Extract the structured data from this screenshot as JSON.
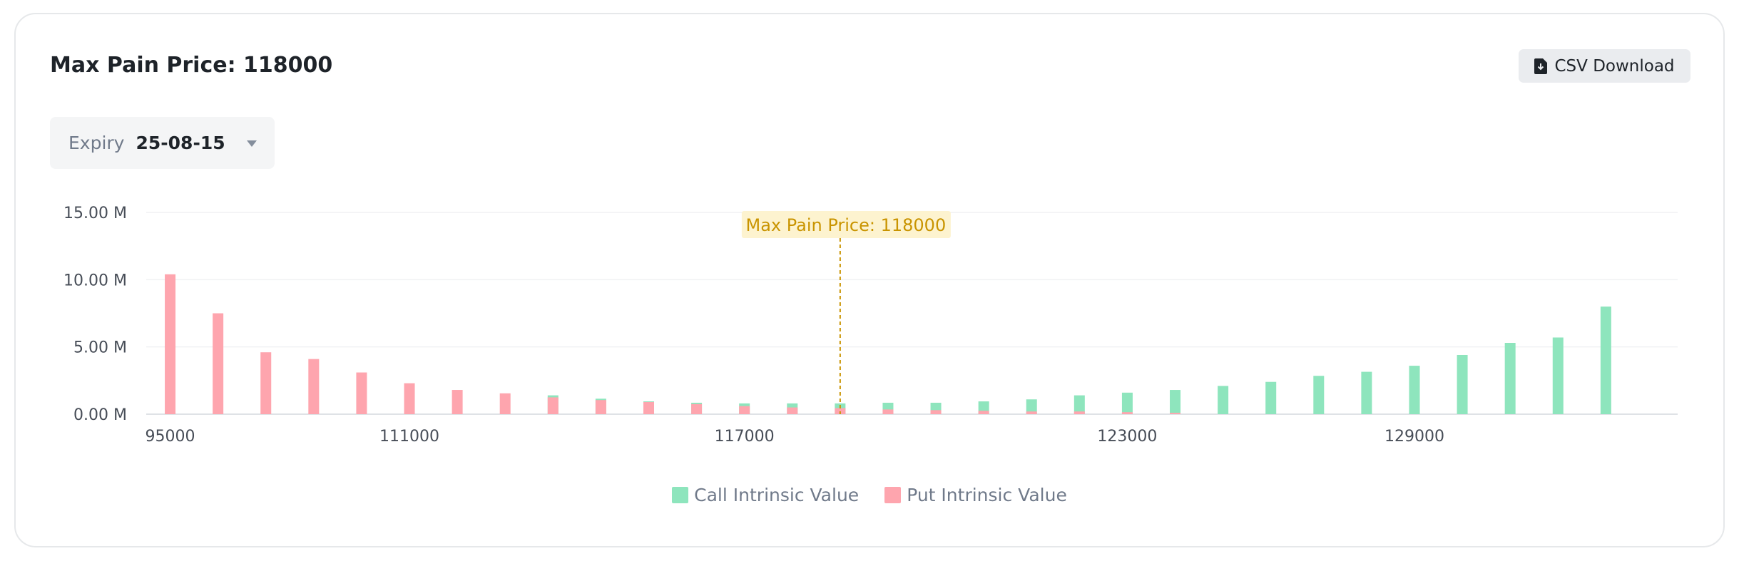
{
  "header": {
    "title": "Max Pain Price: 118000",
    "csv_button_label": "CSV Download",
    "csv_icon": "file-download-icon"
  },
  "expiry": {
    "label": "Expiry",
    "value": "25-08-15",
    "dropdown_icon": "caret-down-icon"
  },
  "chart_data": {
    "type": "bar",
    "max_pain_annotation": "Max Pain Price: 118000",
    "max_pain_strike": 118000,
    "y_ticks": [
      "0.00 M",
      "5.00 M",
      "10.00 M",
      "15.00 M"
    ],
    "y_tick_values": [
      0,
      5,
      10,
      15
    ],
    "ylim": [
      0,
      15
    ],
    "x_tick_labels": [
      "95000",
      "111000",
      "117000",
      "123000",
      "129000"
    ],
    "categories": [
      95000,
      105000,
      107000,
      109000,
      110000,
      111000,
      112000,
      113000,
      114000,
      115000,
      116000,
      116500,
      117000,
      117500,
      118000,
      118500,
      119000,
      120000,
      121000,
      122000,
      123000,
      124000,
      125000,
      126000,
      127000,
      128000,
      129000,
      130000,
      131000,
      132000,
      133000,
      135000
    ],
    "series": [
      {
        "name": "Call Intrinsic Value",
        "color": "#8ee5bd",
        "values": [
          0,
          0,
          0,
          0,
          0,
          0,
          0,
          0,
          1.4,
          1.15,
          0.95,
          0.85,
          0.8,
          0.8,
          0.8,
          0.85,
          0.85,
          0.95,
          1.1,
          1.4,
          1.6,
          1.8,
          2.1,
          2.4,
          2.85,
          3.15,
          3.6,
          4.4,
          5.3,
          5.7,
          8.0,
          0
        ]
      },
      {
        "name": "Put Intrinsic Value",
        "color": "#fea5ae",
        "values": [
          10.4,
          7.5,
          4.6,
          4.1,
          3.1,
          2.3,
          1.8,
          1.55,
          1.25,
          1.05,
          0.9,
          0.75,
          0.6,
          0.5,
          0.45,
          0.35,
          0.3,
          0.25,
          0.2,
          0.2,
          0.15,
          0.1,
          0,
          0,
          0,
          0,
          0,
          0,
          0,
          0,
          0,
          0
        ]
      }
    ],
    "grid": true,
    "legend_position": "bottom-center"
  },
  "legend": {
    "call_label": "Call Intrinsic Value",
    "put_label": "Put Intrinsic Value"
  }
}
